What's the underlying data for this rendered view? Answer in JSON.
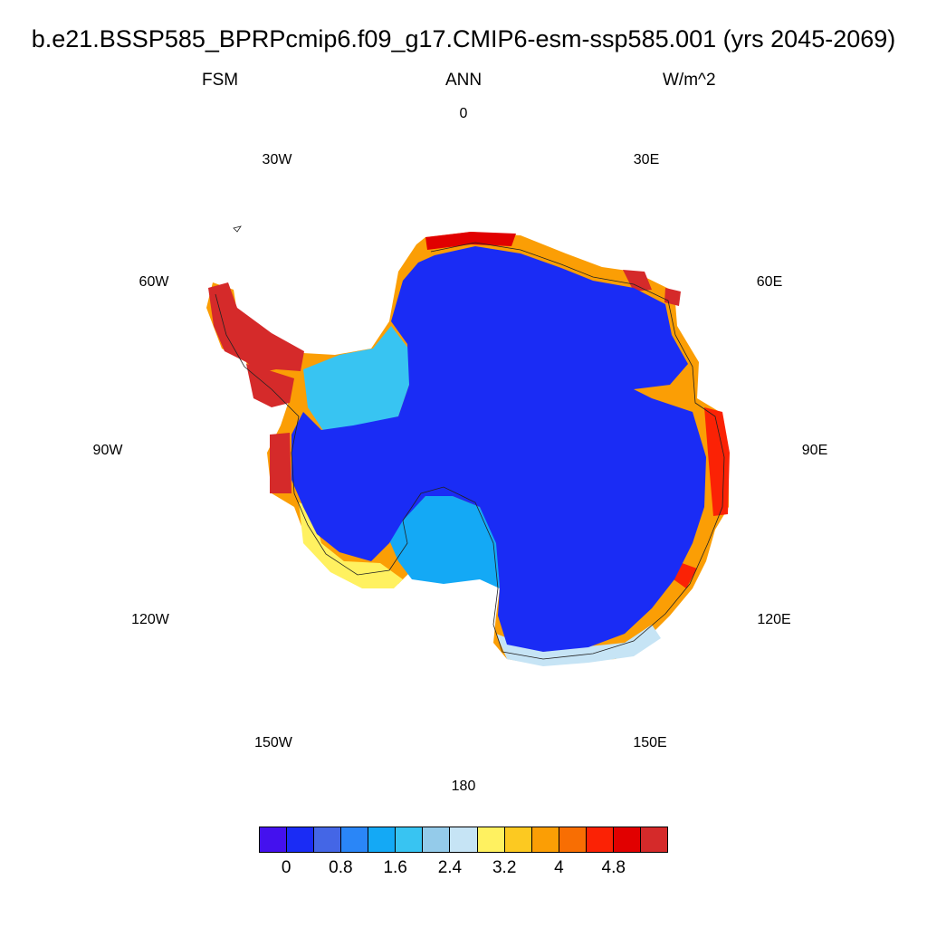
{
  "header": {
    "title": "b.e21.BSSP585_BPRPcmip6.f09_g17.CMIP6-esm-ssp585.001 (yrs 2045-2069)",
    "variable": "FSM",
    "season": "ANN",
    "units": "W/m^2"
  },
  "map": {
    "projection": "south-polar-stereographic",
    "longitude_labels": [
      "0",
      "30E",
      "60E",
      "90E",
      "120E",
      "150E",
      "180",
      "150W",
      "120W",
      "90W",
      "60W",
      "30W"
    ]
  },
  "colorbar": {
    "colors": [
      "#4411ee",
      "#1a2cf5",
      "#4466e6",
      "#2a86f7",
      "#14a9f5",
      "#38c4f2",
      "#94cbea",
      "#c6e4f5",
      "#fff160",
      "#fcc921",
      "#fb9e05",
      "#f86e03",
      "#fb2205",
      "#e10000",
      "#d52a2a"
    ],
    "labels": [
      "0",
      "0.8",
      "1.6",
      "2.4",
      "3.2",
      "4",
      "4.8"
    ]
  },
  "colors": {
    "ice_interior": "#1a2cf5",
    "ice_shelf": "#38c4f2",
    "coast_high": "#d52a2a"
  }
}
